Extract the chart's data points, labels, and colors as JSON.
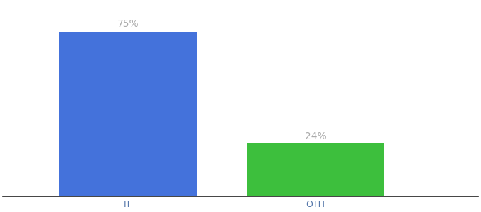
{
  "categories": [
    "IT",
    "OTH"
  ],
  "values": [
    75,
    24
  ],
  "bar_colors": [
    "#4472db",
    "#3dbf3d"
  ],
  "label_texts": [
    "75%",
    "24%"
  ],
  "label_color": "#aaaaaa",
  "label_fontsize": 10,
  "tick_fontsize": 9,
  "tick_color": "#5577aa",
  "background_color": "#ffffff",
  "ylim": [
    0,
    88
  ],
  "bar_width": 0.55,
  "spine_color": "#222222",
  "xlim": [
    -0.15,
    1.75
  ]
}
